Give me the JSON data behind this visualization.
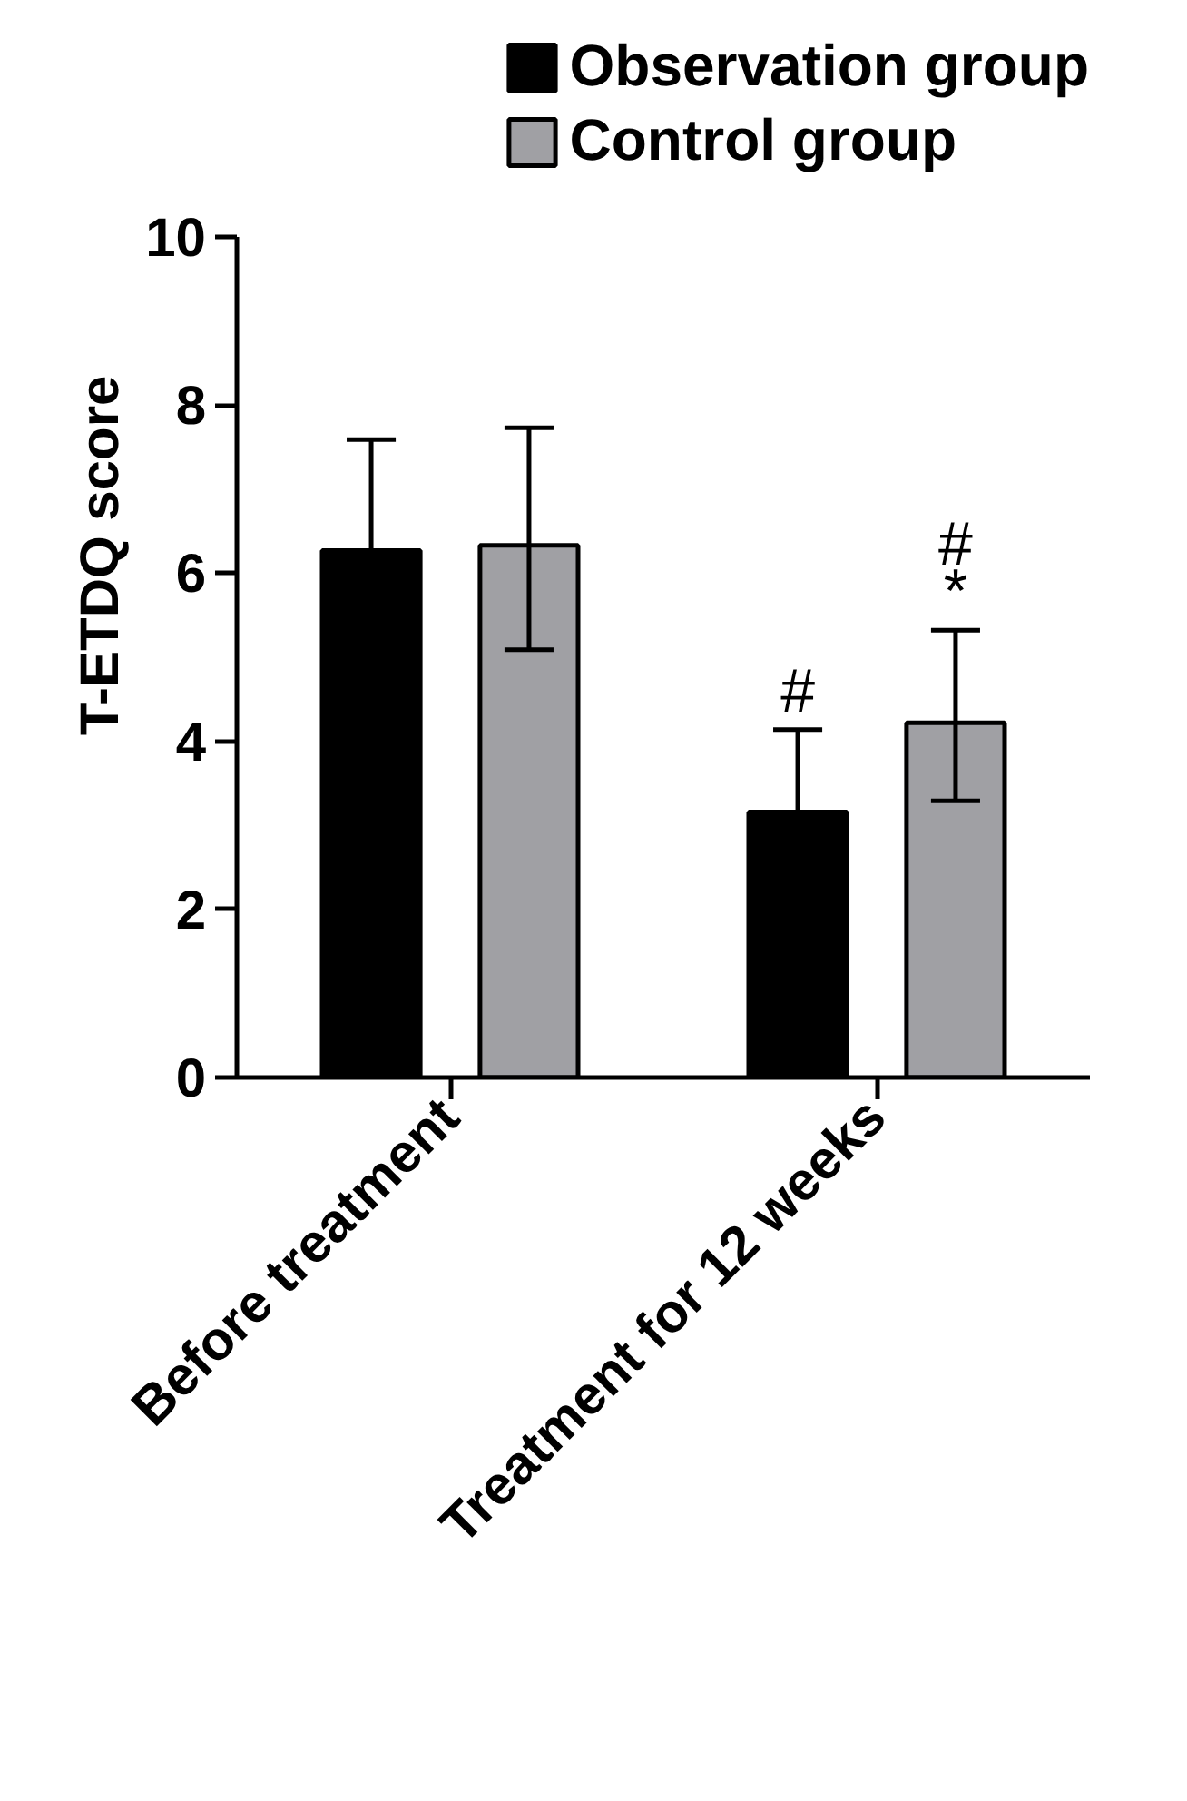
{
  "chart_data": {
    "type": "bar",
    "categories": [
      "Before treatment",
      "Treatment for 12 weeks"
    ],
    "ylabel": "T-ETDQ score",
    "series": [
      {
        "name": "Observation group",
        "color": "#000000",
        "values": [
          6.27,
          3.16
        ],
        "errors": [
          [
            6.27,
            7.59
          ],
          [
            3.16,
            4.14
          ]
        ]
      },
      {
        "name": "Control group",
        "color": "#a0a0a4",
        "values": [
          6.33,
          4.22
        ],
        "errors": [
          [
            5.09,
            7.73
          ],
          [
            3.29,
            5.32
          ]
        ]
      }
    ],
    "ylim": [
      0,
      10
    ],
    "yticks": [
      0,
      2,
      4,
      6,
      8,
      10
    ],
    "annotations": [
      "#",
      "*",
      "#"
    ],
    "grid": false,
    "legend": "top right"
  }
}
